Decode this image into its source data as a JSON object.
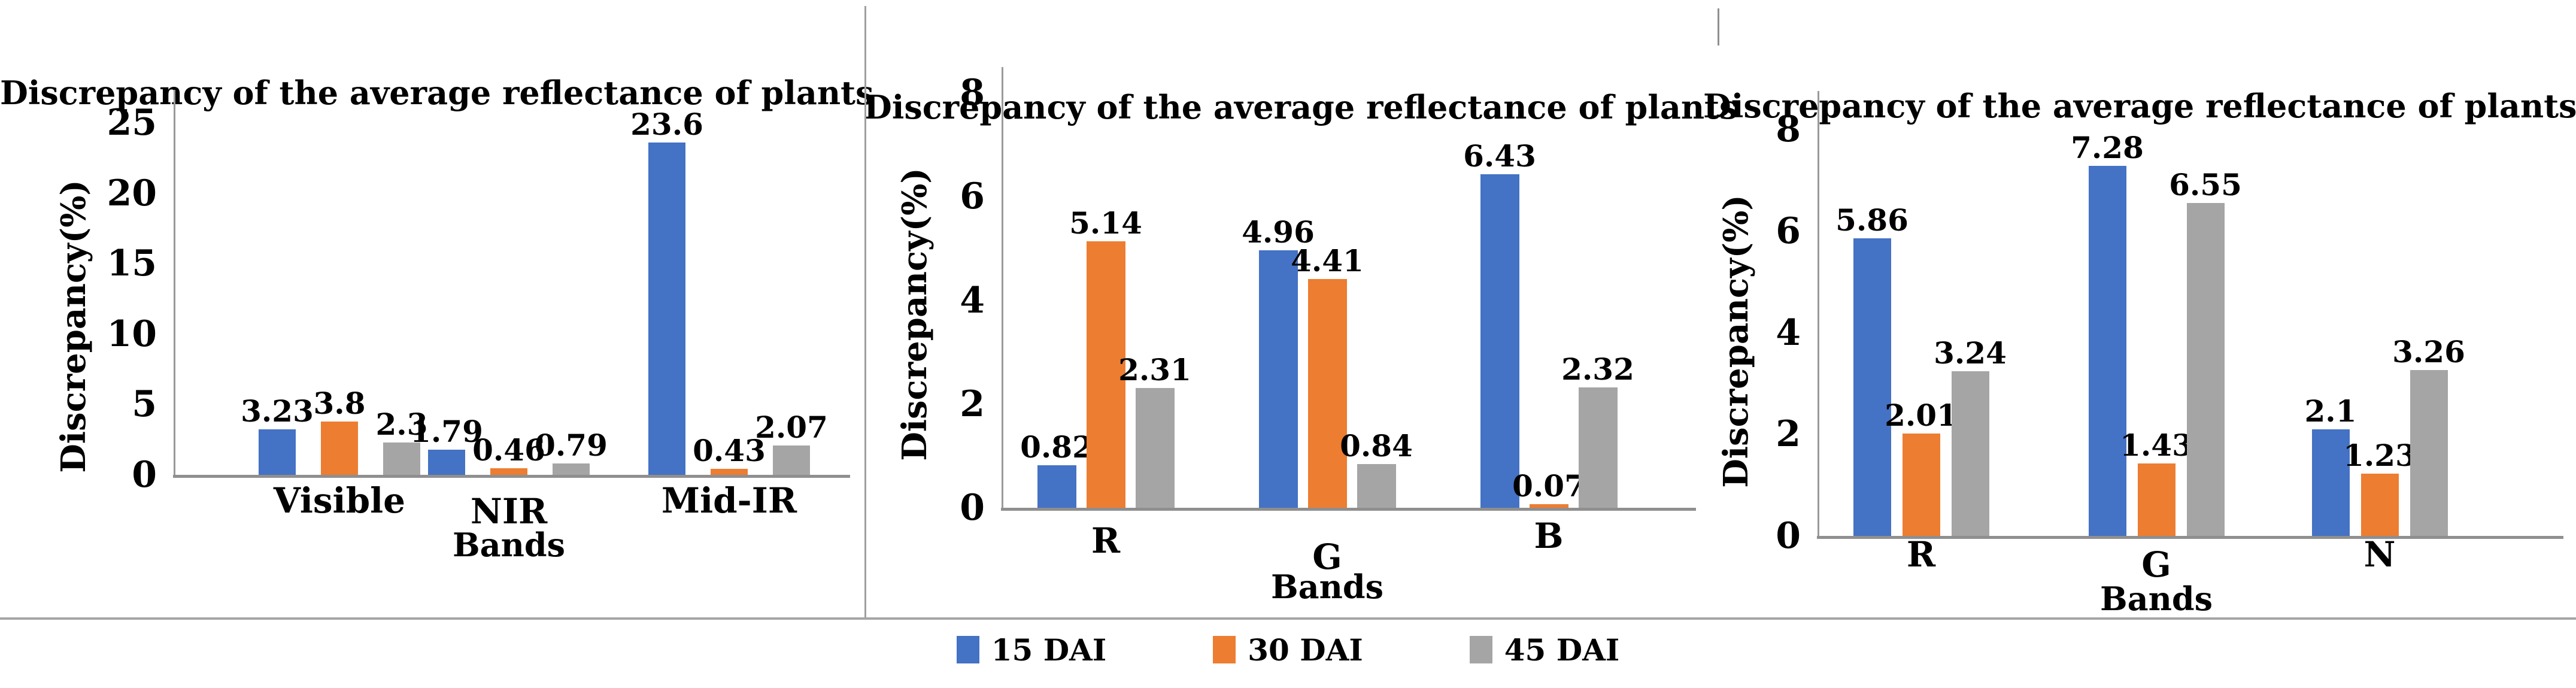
{
  "legend": {
    "items": [
      {
        "label": "15 DAI",
        "color": "#4472C4"
      },
      {
        "label": "30 DAI",
        "color": "#ED7D31"
      },
      {
        "label": "45 DAI",
        "color": "#A5A5A5"
      }
    ]
  },
  "chart_data": [
    {
      "type": "bar",
      "title": "Discrepancy of the average reflectance of plants",
      "ylabel": "Discrepancy(%)",
      "xlabel": "Bands",
      "categories": [
        "Visible",
        "NIR",
        "Mid-IR"
      ],
      "ylim": [
        0,
        25
      ],
      "yticks": [
        "0",
        "5",
        "10",
        "15",
        "20",
        "25"
      ],
      "grid": false,
      "legend_position": "shared-bottom",
      "series": [
        {
          "name": "15 DAI",
          "color": "#4472C4",
          "values": [
            3.23,
            1.79,
            23.6
          ]
        },
        {
          "name": "30 DAI",
          "color": "#ED7D31",
          "values": [
            3.8,
            0.46,
            0.43
          ]
        },
        {
          "name": "45 DAI",
          "color": "#A5A5A5",
          "values": [
            2.3,
            0.79,
            2.07
          ]
        }
      ]
    },
    {
      "type": "bar",
      "title": "Discrepancy of the average reflectance of plants",
      "ylabel": "Discrepancy(%)",
      "xlabel": "Bands",
      "categories": [
        "R",
        "G",
        "B"
      ],
      "ylim": [
        0,
        8
      ],
      "yticks": [
        "0",
        "2",
        "4",
        "6",
        "8"
      ],
      "grid": false,
      "legend_position": "shared-bottom",
      "series": [
        {
          "name": "15 DAI",
          "color": "#4472C4",
          "values": [
            0.82,
            4.96,
            6.43
          ]
        },
        {
          "name": "30 DAI",
          "color": "#ED7D31",
          "values": [
            5.14,
            4.41,
            0.07
          ]
        },
        {
          "name": "45 DAI",
          "color": "#A5A5A5",
          "values": [
            2.31,
            0.84,
            2.32
          ]
        }
      ]
    },
    {
      "type": "bar",
      "title": "Discrepancy of the average reflectance of plants",
      "ylabel": "Discrepancy(%)",
      "xlabel": "Bands",
      "categories": [
        "R",
        "G",
        "N"
      ],
      "ylim": [
        0,
        8
      ],
      "yticks": [
        "0",
        "2",
        "4",
        "6",
        "8"
      ],
      "grid": false,
      "legend_position": "shared-bottom",
      "series": [
        {
          "name": "15 DAI",
          "color": "#4472C4",
          "values": [
            5.86,
            7.28,
            2.1
          ]
        },
        {
          "name": "30 DAI",
          "color": "#ED7D31",
          "values": [
            2.01,
            1.43,
            1.23
          ]
        },
        {
          "name": "45 DAI",
          "color": "#A5A5A5",
          "values": [
            3.24,
            6.55,
            3.26
          ]
        }
      ]
    }
  ]
}
